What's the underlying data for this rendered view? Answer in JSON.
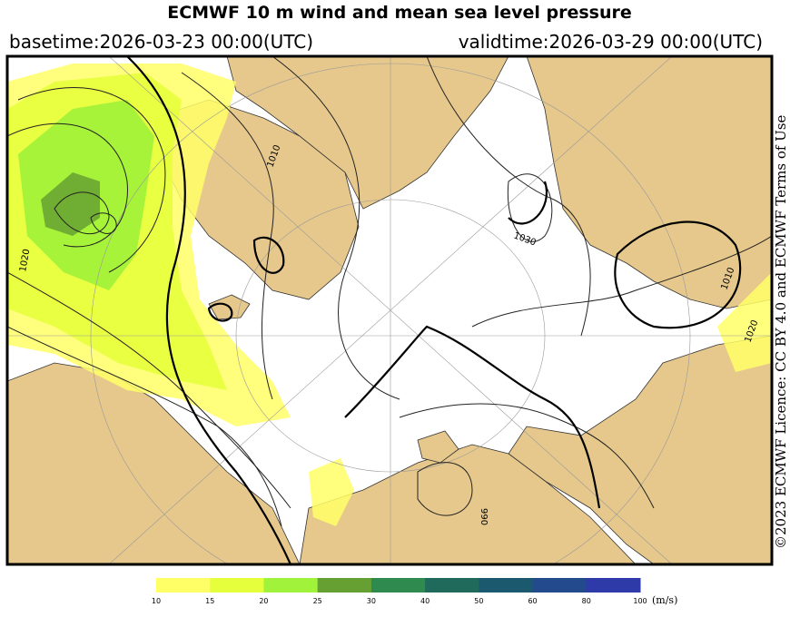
{
  "header": {
    "title": "ECMWF 10 m wind and mean sea level pressure",
    "basetime": "basetime:2026-03-23 00:00(UTC)",
    "validtime": "validtime:2026-03-29 00:00(UTC)"
  },
  "map": {
    "contour_labels": [
      "1020",
      "1010",
      "1030",
      "1010",
      "1020",
      "990"
    ]
  },
  "legend": {
    "ticks": [
      10,
      15,
      20,
      25,
      30,
      40,
      50,
      60,
      80,
      100
    ],
    "colors": [
      "#ffff66",
      "#e5ff3c",
      "#a0f23a",
      "#66a032",
      "#2e8a4e",
      "#1f6a5a",
      "#1b5a6e",
      "#234a8c",
      "#2d3aa8"
    ],
    "unit": "(m/s)"
  },
  "credit": "©2023 ECMWF Licence: CC BY 4.0 and ECMWF Terms of Use"
}
